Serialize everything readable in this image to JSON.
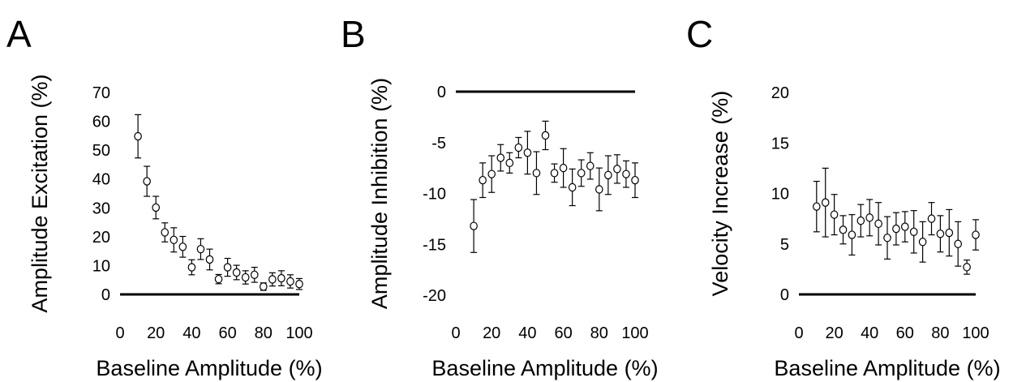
{
  "chart_data": [
    {
      "panel": "A",
      "type": "scatter",
      "xlabel": "Baseline Amplitude (%)",
      "ylabel": "Amplitude Excitation (%)",
      "xlim": [
        0,
        100
      ],
      "ylim": [
        0,
        70
      ],
      "xticks": [
        "0",
        "20",
        "40",
        "60",
        "80",
        "100"
      ],
      "yticks": [
        "0",
        "10",
        "20",
        "30",
        "40",
        "50",
        "60",
        "70"
      ],
      "reference_line": 0,
      "grid": false,
      "x": [
        10,
        15,
        20,
        25,
        30,
        35,
        40,
        45,
        50,
        55,
        60,
        65,
        70,
        75,
        80,
        85,
        90,
        95,
        100
      ],
      "y": [
        54.8,
        39.2,
        30.1,
        21.5,
        18.9,
        16.5,
        9.4,
        15.7,
        12.1,
        5.3,
        9.4,
        7.6,
        5.9,
        6.8,
        2.7,
        5.2,
        5.6,
        4.5,
        3.6
      ],
      "error": [
        7.5,
        5.2,
        3.9,
        3.3,
        4.2,
        3.6,
        2.6,
        3.6,
        3.6,
        1.6,
        3.1,
        2.5,
        2.3,
        2.6,
        1.3,
        2.3,
        2.6,
        2.3,
        1.9
      ]
    },
    {
      "panel": "B",
      "type": "scatter",
      "xlabel": "Baseline Amplitude (%)",
      "ylabel": "Amplitude Inhibition (%)",
      "xlim": [
        0,
        100
      ],
      "ylim": [
        -20,
        0
      ],
      "xticks": [
        "0",
        "20",
        "40",
        "60",
        "80",
        "100"
      ],
      "yticks": [
        "0",
        "-5",
        "-10",
        "-15",
        "-20"
      ],
      "reference_line": 0,
      "grid": false,
      "x": [
        10,
        15,
        20,
        25,
        30,
        35,
        40,
        45,
        50,
        55,
        60,
        65,
        70,
        75,
        80,
        85,
        90,
        95,
        100
      ],
      "y": [
        -13.2,
        -8.7,
        -8.1,
        -6.5,
        -7.0,
        -5.5,
        -6.0,
        -8.0,
        -4.3,
        -8.0,
        -7.5,
        -9.4,
        -8.0,
        -7.3,
        -9.6,
        -8.2,
        -7.6,
        -8.1,
        -8.7
      ],
      "error": [
        2.6,
        1.7,
        1.8,
        1.3,
        1.0,
        1.0,
        2.1,
        2.1,
        1.4,
        0.9,
        1.9,
        1.8,
        1.3,
        1.3,
        2.1,
        1.9,
        1.4,
        1.3,
        1.7
      ]
    },
    {
      "panel": "C",
      "type": "scatter",
      "xlabel": "Baseline Amplitude (%)",
      "ylabel": "Velocity Increase (%)",
      "xlim": [
        0,
        100
      ],
      "ylim": [
        0,
        20
      ],
      "xticks": [
        "0",
        "20",
        "40",
        "60",
        "80",
        "100"
      ],
      "yticks": [
        "0",
        "5",
        "10",
        "15",
        "20"
      ],
      "reference_line": 0,
      "grid": false,
      "x": [
        10,
        15,
        20,
        25,
        30,
        35,
        40,
        45,
        50,
        55,
        60,
        65,
        70,
        75,
        80,
        85,
        90,
        95,
        100
      ],
      "y": [
        8.7,
        9.1,
        7.9,
        6.4,
        5.9,
        7.3,
        7.6,
        7.0,
        5.6,
        6.5,
        6.7,
        6.2,
        5.2,
        7.5,
        6.0,
        6.1,
        5.0,
        2.7,
        5.9
      ],
      "error": [
        2.5,
        3.4,
        2.0,
        1.4,
        2.0,
        1.6,
        1.8,
        2.1,
        2.1,
        1.6,
        1.5,
        2.1,
        2.0,
        1.6,
        1.8,
        2.3,
        2.2,
        0.7,
        1.5
      ]
    }
  ]
}
